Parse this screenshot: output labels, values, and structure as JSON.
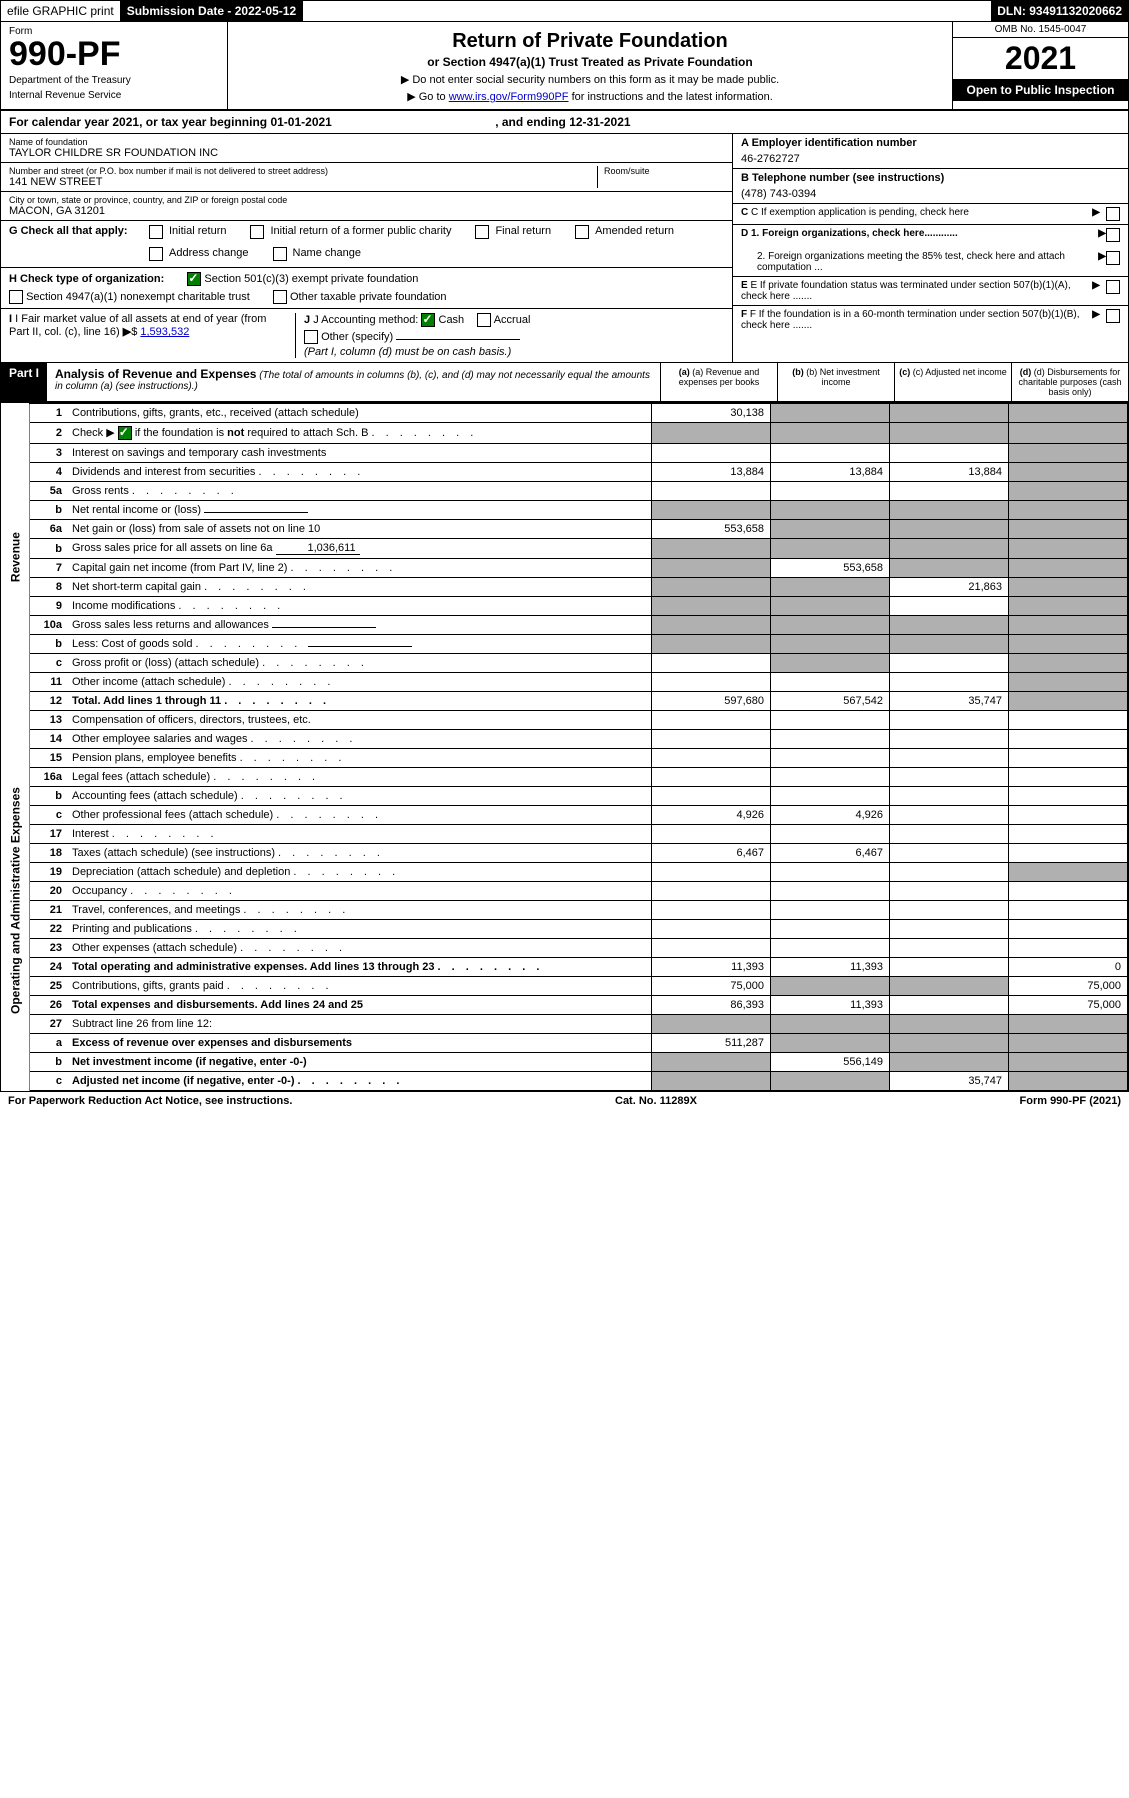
{
  "topbar": {
    "efile": "efile GRAPHIC print",
    "submission_label": "Submission Date - ",
    "submission_date": "2022-05-12",
    "dln": "DLN: 93491132020662"
  },
  "header": {
    "form_label": "Form",
    "form_number": "990-PF",
    "dept1": "Department of the Treasury",
    "dept2": "Internal Revenue Service",
    "title": "Return of Private Foundation",
    "subtitle": "or Section 4947(a)(1) Trust Treated as Private Foundation",
    "instr1": "▶ Do not enter social security numbers on this form as it may be made public.",
    "instr2_prefix": "▶ Go to ",
    "instr2_link": "www.irs.gov/Form990PF",
    "instr2_suffix": " for instructions and the latest information.",
    "omb": "OMB No. 1545-0047",
    "year": "2021",
    "open_public": "Open to Public Inspection"
  },
  "calendar": {
    "text_prefix": "For calendar year 2021, or tax year beginning ",
    "begin": "01-01-2021",
    "text_mid": " , and ending ",
    "end": "12-31-2021"
  },
  "info": {
    "name_label": "Name of foundation",
    "name_value": "TAYLOR CHILDRE SR FOUNDATION INC",
    "addr_label": "Number and street (or P.O. box number if mail is not delivered to street address)",
    "addr_value": "141 NEW STREET",
    "room_label": "Room/suite",
    "city_label": "City or town, state or province, country, and ZIP or foreign postal code",
    "city_value": "MACON, GA  31201",
    "a_label": "A Employer identification number",
    "a_value": "46-2762727",
    "b_label": "B Telephone number (see instructions)",
    "b_value": "(478) 743-0394",
    "c_label": "C If exemption application is pending, check here",
    "d1_label": "D 1. Foreign organizations, check here............",
    "d2_label": "2. Foreign organizations meeting the 85% test, check here and attach computation ...",
    "e_label": "E If private foundation status was terminated under section 507(b)(1)(A), check here .......",
    "f_label": "F If the foundation is in a 60-month termination under section 507(b)(1)(B), check here .......",
    "g_label": "G Check all that apply:",
    "g_opts": {
      "initial": "Initial return",
      "initial_former": "Initial return of a former public charity",
      "final": "Final return",
      "amended": "Amended return",
      "address": "Address change",
      "name": "Name change"
    },
    "h_label": "H Check type of organization:",
    "h_opts": {
      "s501": "Section 501(c)(3) exempt private foundation",
      "s4947": "Section 4947(a)(1) nonexempt charitable trust",
      "other_tax": "Other taxable private foundation"
    },
    "i_label": "I Fair market value of all assets at end of year (from Part II, col. (c), line 16)",
    "i_value": "1,593,532",
    "j_label": "J Accounting method:",
    "j_cash": "Cash",
    "j_accrual": "Accrual",
    "j_other": "Other (specify)",
    "j_note": "(Part I, column (d) must be on cash basis.)"
  },
  "part1": {
    "label": "Part I",
    "title": "Analysis of Revenue and Expenses",
    "desc": " (The total of amounts in columns (b), (c), and (d) may not necessarily equal the amounts in column (a) (see instructions).)",
    "col_a": "(a) Revenue and expenses per books",
    "col_b": "(b) Net investment income",
    "col_c": "(c) Adjusted net income",
    "col_d": "(d) Disbursements for charitable purposes (cash basis only)",
    "side_revenue": "Revenue",
    "side_expenses": "Operating and Administrative Expenses"
  },
  "rows": [
    {
      "num": "1",
      "desc": "Contributions, gifts, grants, etc., received (attach schedule)",
      "a": "30,138",
      "b": "",
      "c": "",
      "d": "",
      "shade_b": true,
      "shade_c": true,
      "shade_d": true
    },
    {
      "num": "2",
      "desc": "Check ▶ ☑ if the foundation is not required to attach Sch. B",
      "a": "",
      "b": "",
      "c": "",
      "d": "",
      "shade_a": true,
      "shade_b": true,
      "shade_c": true,
      "shade_d": true,
      "dotted": true,
      "bold_not": true
    },
    {
      "num": "3",
      "desc": "Interest on savings and temporary cash investments",
      "a": "",
      "b": "",
      "c": "",
      "d": "",
      "shade_d": true
    },
    {
      "num": "4",
      "desc": "Dividends and interest from securities",
      "a": "13,884",
      "b": "13,884",
      "c": "13,884",
      "d": "",
      "dotted": true,
      "shade_d": true
    },
    {
      "num": "5a",
      "desc": "Gross rents",
      "a": "",
      "b": "",
      "c": "",
      "d": "",
      "dotted": true,
      "shade_d": true
    },
    {
      "num": "b",
      "desc": "Net rental income or (loss)",
      "a": "",
      "b": "",
      "c": "",
      "d": "",
      "inline_input": true,
      "shade_a": true,
      "shade_b": true,
      "shade_c": true,
      "shade_d": true
    },
    {
      "num": "6a",
      "desc": "Net gain or (loss) from sale of assets not on line 10",
      "a": "553,658",
      "b": "",
      "c": "",
      "d": "",
      "shade_b": true,
      "shade_c": true,
      "shade_d": true
    },
    {
      "num": "b",
      "desc": "Gross sales price for all assets on line 6a",
      "a": "",
      "b": "",
      "c": "",
      "d": "",
      "inline_val": "1,036,611",
      "shade_a": true,
      "shade_b": true,
      "shade_c": true,
      "shade_d": true
    },
    {
      "num": "7",
      "desc": "Capital gain net income (from Part IV, line 2)",
      "a": "",
      "b": "553,658",
      "c": "",
      "d": "",
      "dotted": true,
      "shade_a": true,
      "shade_c": true,
      "shade_d": true
    },
    {
      "num": "8",
      "desc": "Net short-term capital gain",
      "a": "",
      "b": "",
      "c": "21,863",
      "d": "",
      "dotted": true,
      "shade_a": true,
      "shade_b": true,
      "shade_d": true
    },
    {
      "num": "9",
      "desc": "Income modifications",
      "a": "",
      "b": "",
      "c": "",
      "d": "",
      "dotted": true,
      "shade_a": true,
      "shade_b": true,
      "shade_d": true
    },
    {
      "num": "10a",
      "desc": "Gross sales less returns and allowances",
      "a": "",
      "b": "",
      "c": "",
      "d": "",
      "inline_input": true,
      "shade_a": true,
      "shade_b": true,
      "shade_c": true,
      "shade_d": true
    },
    {
      "num": "b",
      "desc": "Less: Cost of goods sold",
      "a": "",
      "b": "",
      "c": "",
      "d": "",
      "dotted": true,
      "inline_input": true,
      "shade_a": true,
      "shade_b": true,
      "shade_c": true,
      "shade_d": true
    },
    {
      "num": "c",
      "desc": "Gross profit or (loss) (attach schedule)",
      "a": "",
      "b": "",
      "c": "",
      "d": "",
      "dotted": true,
      "shade_b": true,
      "shade_d": true
    },
    {
      "num": "11",
      "desc": "Other income (attach schedule)",
      "a": "",
      "b": "",
      "c": "",
      "d": "",
      "dotted": true,
      "shade_d": true
    },
    {
      "num": "12",
      "desc": "Total. Add lines 1 through 11",
      "a": "597,680",
      "b": "567,542",
      "c": "35,747",
      "d": "",
      "bold": true,
      "dotted": true,
      "shade_d": true
    },
    {
      "num": "13",
      "desc": "Compensation of officers, directors, trustees, etc.",
      "a": "",
      "b": "",
      "c": "",
      "d": ""
    },
    {
      "num": "14",
      "desc": "Other employee salaries and wages",
      "a": "",
      "b": "",
      "c": "",
      "d": "",
      "dotted": true
    },
    {
      "num": "15",
      "desc": "Pension plans, employee benefits",
      "a": "",
      "b": "",
      "c": "",
      "d": "",
      "dotted": true
    },
    {
      "num": "16a",
      "desc": "Legal fees (attach schedule)",
      "a": "",
      "b": "",
      "c": "",
      "d": "",
      "dotted": true
    },
    {
      "num": "b",
      "desc": "Accounting fees (attach schedule)",
      "a": "",
      "b": "",
      "c": "",
      "d": "",
      "dotted": true
    },
    {
      "num": "c",
      "desc": "Other professional fees (attach schedule)",
      "a": "4,926",
      "b": "4,926",
      "c": "",
      "d": "",
      "dotted": true
    },
    {
      "num": "17",
      "desc": "Interest",
      "a": "",
      "b": "",
      "c": "",
      "d": "",
      "dotted": true
    },
    {
      "num": "18",
      "desc": "Taxes (attach schedule) (see instructions)",
      "a": "6,467",
      "b": "6,467",
      "c": "",
      "d": "",
      "dotted": true
    },
    {
      "num": "19",
      "desc": "Depreciation (attach schedule) and depletion",
      "a": "",
      "b": "",
      "c": "",
      "d": "",
      "dotted": true,
      "shade_d": true
    },
    {
      "num": "20",
      "desc": "Occupancy",
      "a": "",
      "b": "",
      "c": "",
      "d": "",
      "dotted": true
    },
    {
      "num": "21",
      "desc": "Travel, conferences, and meetings",
      "a": "",
      "b": "",
      "c": "",
      "d": "",
      "dotted": true
    },
    {
      "num": "22",
      "desc": "Printing and publications",
      "a": "",
      "b": "",
      "c": "",
      "d": "",
      "dotted": true
    },
    {
      "num": "23",
      "desc": "Other expenses (attach schedule)",
      "a": "",
      "b": "",
      "c": "",
      "d": "",
      "dotted": true
    },
    {
      "num": "24",
      "desc": "Total operating and administrative expenses. Add lines 13 through 23",
      "a": "11,393",
      "b": "11,393",
      "c": "",
      "d": "0",
      "bold": true,
      "dotted": true
    },
    {
      "num": "25",
      "desc": "Contributions, gifts, grants paid",
      "a": "75,000",
      "b": "",
      "c": "",
      "d": "75,000",
      "dotted": true,
      "shade_b": true,
      "shade_c": true
    },
    {
      "num": "26",
      "desc": "Total expenses and disbursements. Add lines 24 and 25",
      "a": "86,393",
      "b": "11,393",
      "c": "",
      "d": "75,000",
      "bold": true
    },
    {
      "num": "27",
      "desc": "Subtract line 26 from line 12:",
      "a": "",
      "b": "",
      "c": "",
      "d": "",
      "shade_a": true,
      "shade_b": true,
      "shade_c": true,
      "shade_d": true
    },
    {
      "num": "a",
      "desc": "Excess of revenue over expenses and disbursements",
      "a": "511,287",
      "b": "",
      "c": "",
      "d": "",
      "bold": true,
      "shade_b": true,
      "shade_c": true,
      "shade_d": true
    },
    {
      "num": "b",
      "desc": "Net investment income (if negative, enter -0-)",
      "a": "",
      "b": "556,149",
      "c": "",
      "d": "",
      "bold": true,
      "shade_a": true,
      "shade_c": true,
      "shade_d": true
    },
    {
      "num": "c",
      "desc": "Adjusted net income (if negative, enter -0-)",
      "a": "",
      "b": "",
      "c": "35,747",
      "d": "",
      "bold": true,
      "dotted": true,
      "shade_a": true,
      "shade_b": true,
      "shade_d": true
    }
  ],
  "footer": {
    "left": "For Paperwork Reduction Act Notice, see instructions.",
    "mid": "Cat. No. 11289X",
    "right": "Form 990-PF (2021)"
  }
}
